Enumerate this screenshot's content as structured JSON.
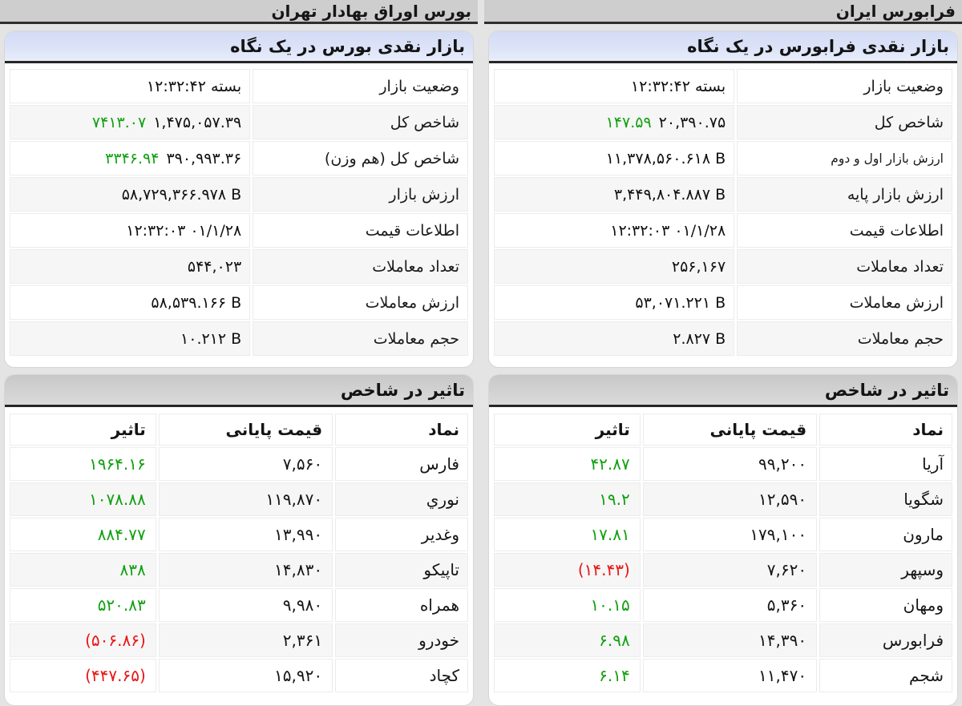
{
  "colors": {
    "positive_green": "#10a010",
    "negative_red": "#ea1515",
    "summary_header_blue": "#dce3f8",
    "titlebar_gray": "#cecece"
  },
  "impact_columns": {
    "symbol": "نماد",
    "price": "قیمت پایانی",
    "impact": "تاثیر"
  },
  "bourse": {
    "title": "بورس اوراق بهادار تهران",
    "summary_title": "بازار نقدی بورس در یک نگاه",
    "impact_title": "تاثیر در شاخص",
    "summary_rows": [
      {
        "label": "وضعیت بازار",
        "value": "بسته ۱۲:۳۲:۴۲",
        "value_dir": "rtl"
      },
      {
        "label": "شاخص کل",
        "value": "۱,۴۷۵,۰۵۷.۳۹",
        "change": "۷۴۱۳.۰۷",
        "change_color": "green"
      },
      {
        "label": "شاخص کل (هم وزن)",
        "value": "۳۹۰,۹۹۳.۳۶",
        "change": "۳۳۴۶.۹۴",
        "change_color": "green"
      },
      {
        "label": "ارزش بازار",
        "value": "۵۸,۷۲۹,۳۶۶.۹۷۸ B"
      },
      {
        "label": "اطلاعات قیمت",
        "value": "۰۱/۱/۲۸ ۱۲:۳۲:۰۳",
        "value_dir": "rtl"
      },
      {
        "label": "تعداد معاملات",
        "value": "۵۴۴,۰۲۳"
      },
      {
        "label": "ارزش معاملات",
        "value": "۵۸,۵۳۹.۱۶۶ B"
      },
      {
        "label": "حجم معاملات",
        "value": "۱۰.۲۱۲ B"
      }
    ],
    "impact_rows": [
      {
        "symbol": "فارس",
        "price": "۷,۵۶۰",
        "impact": "۱۹۶۴.۱۶",
        "impact_color": "green"
      },
      {
        "symbol": "نوري",
        "price": "۱۱۹,۸۷۰",
        "impact": "۱۰۷۸.۸۸",
        "impact_color": "green"
      },
      {
        "symbol": "وغدیر",
        "price": "۱۳,۹۹۰",
        "impact": "۸۸۴.۷۷",
        "impact_color": "green"
      },
      {
        "symbol": "تاپیکو",
        "price": "۱۴,۸۳۰",
        "impact": "۸۳۸",
        "impact_color": "green"
      },
      {
        "symbol": "همراه",
        "price": "۹,۹۸۰",
        "impact": "۵۲۰.۸۳",
        "impact_color": "green"
      },
      {
        "symbol": "خودرو",
        "price": "۲,۳۶۱",
        "impact": "(۵۰۶.۸۶)",
        "impact_color": "red"
      },
      {
        "symbol": "کچاد",
        "price": "۱۵,۹۲۰",
        "impact": "(۴۴۷.۶۵)",
        "impact_color": "red"
      }
    ]
  },
  "farabourse": {
    "title": "فرابورس ایران",
    "summary_title": "بازار نقدی فرابورس در یک نگاه",
    "impact_title": "تاثیر در شاخص",
    "summary_rows": [
      {
        "label": "وضعیت بازار",
        "value": "بسته ۱۲:۳۲:۴۲",
        "value_dir": "rtl"
      },
      {
        "label": "شاخص کل",
        "value": "۲۰,۳۹۰.۷۵",
        "change": "۱۴۷.۵۹",
        "change_color": "green"
      },
      {
        "label": "ارزش بازار اول و دوم",
        "value": "۱۱,۳۷۸,۵۶۰.۶۱۸ B",
        "label_class": "small"
      },
      {
        "label": "ارزش بازار پایه",
        "value": "۳,۴۴۹,۸۰۴.۸۸۷ B"
      },
      {
        "label": "اطلاعات قیمت",
        "value": "۰۱/۱/۲۸ ۱۲:۳۲:۰۳",
        "value_dir": "rtl"
      },
      {
        "label": "تعداد معاملات",
        "value": "۲۵۶,۱۶۷"
      },
      {
        "label": "ارزش معاملات",
        "value": "۵۳,۰۷۱.۲۲۱ B"
      },
      {
        "label": "حجم معاملات",
        "value": "۲.۸۲۷ B"
      }
    ],
    "impact_rows": [
      {
        "symbol": "آریا",
        "price": "۹۹,۲۰۰",
        "impact": "۴۲.۸۷",
        "impact_color": "green"
      },
      {
        "symbol": "شگویا",
        "price": "۱۲,۵۹۰",
        "impact": "۱۹.۲",
        "impact_color": "green"
      },
      {
        "symbol": "مارون",
        "price": "۱۷۹,۱۰۰",
        "impact": "۱۷.۸۱",
        "impact_color": "green"
      },
      {
        "symbol": "وسپهر",
        "price": "۷,۶۲۰",
        "impact": "(۱۴.۴۳)",
        "impact_color": "red"
      },
      {
        "symbol": "ومهان",
        "price": "۵,۳۶۰",
        "impact": "۱۰.۱۵",
        "impact_color": "green"
      },
      {
        "symbol": "فرابورس",
        "price": "۱۴,۳۹۰",
        "impact": "۶.۹۸",
        "impact_color": "green"
      },
      {
        "symbol": "شجم",
        "price": "۱۱,۴۷۰",
        "impact": "۶.۱۴",
        "impact_color": "green"
      }
    ]
  }
}
